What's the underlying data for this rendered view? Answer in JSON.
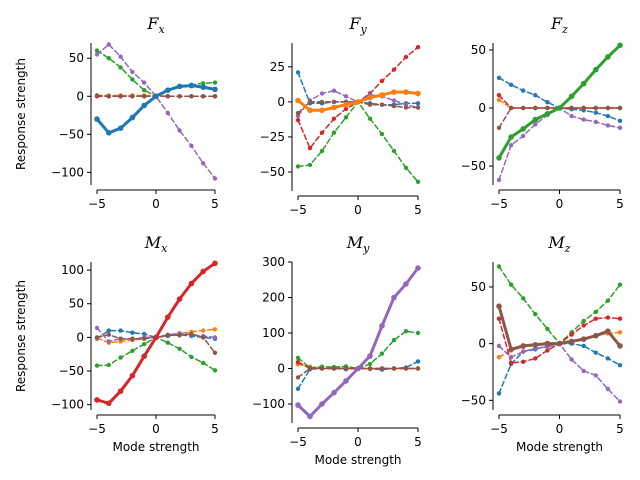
{
  "colors": {
    "blue": "#1f77b4",
    "orange": "#ff7f0e",
    "green": "#2ca02c",
    "red": "#d62728",
    "purple": "#9467bd",
    "brown": "#8c564b"
  },
  "chart_data": [
    {
      "type": "line",
      "title": "F",
      "subscript": "x",
      "xlabel": "",
      "ylabel": "Response strength",
      "xlim": [
        -5,
        5
      ],
      "ylim": [
        -110,
        70
      ],
      "xticks": [
        -5,
        0,
        5
      ],
      "yticks": [
        50,
        0,
        -50,
        -100
      ],
      "x": [
        -5,
        -4,
        -3,
        -2,
        -1,
        0,
        1,
        2,
        3,
        4,
        5
      ],
      "series": [
        {
          "name": "blue",
          "color": "blue",
          "dashed": false,
          "bold": true,
          "values": [
            -30,
            -48,
            -42,
            -28,
            -12,
            0,
            8,
            13,
            14,
            12,
            9
          ]
        },
        {
          "name": "orange",
          "color": "orange",
          "dashed": true,
          "bold": false,
          "values": [
            1,
            1,
            1,
            1,
            1,
            1,
            0,
            0,
            0,
            0,
            0
          ]
        },
        {
          "name": "green",
          "color": "green",
          "dashed": true,
          "bold": false,
          "values": [
            60,
            50,
            38,
            22,
            8,
            0,
            8,
            13,
            15,
            17,
            18
          ]
        },
        {
          "name": "red",
          "color": "red",
          "dashed": true,
          "bold": false,
          "values": [
            0,
            0,
            0,
            0,
            0,
            0,
            0,
            0,
            0,
            0,
            0
          ]
        },
        {
          "name": "purple",
          "color": "purple",
          "dashed": true,
          "bold": false,
          "values": [
            55,
            68,
            52,
            32,
            18,
            0,
            -22,
            -45,
            -65,
            -88,
            -108
          ]
        },
        {
          "name": "brown",
          "color": "brown",
          "dashed": true,
          "bold": false,
          "values": [
            1,
            0,
            0,
            0,
            0,
            0,
            0,
            0,
            0,
            0,
            0
          ]
        }
      ]
    },
    {
      "type": "line",
      "title": "F",
      "subscript": "y",
      "xlabel": "",
      "ylabel": "",
      "xlim": [
        -5,
        5
      ],
      "ylim": [
        -60,
        42
      ],
      "xticks": [
        -5,
        0,
        5
      ],
      "yticks": [
        25,
        0,
        -25,
        -50
      ],
      "x": [
        -5,
        -4,
        -3,
        -2,
        -1,
        0,
        1,
        2,
        3,
        4,
        5
      ],
      "series": [
        {
          "name": "blue",
          "color": "blue",
          "dashed": true,
          "bold": false,
          "values": [
            21,
            -1,
            -1,
            0,
            0,
            0,
            -1,
            -2,
            -2,
            -1,
            -1
          ]
        },
        {
          "name": "orange",
          "color": "orange",
          "dashed": false,
          "bold": true,
          "values": [
            1,
            -6,
            -6,
            -4,
            -2,
            0,
            3,
            5,
            7,
            7,
            6
          ]
        },
        {
          "name": "green",
          "color": "green",
          "dashed": true,
          "bold": false,
          "values": [
            -46,
            -45,
            -35,
            -22,
            -11,
            0,
            -12,
            -23,
            -35,
            -47,
            -57
          ]
        },
        {
          "name": "red",
          "color": "red",
          "dashed": true,
          "bold": false,
          "values": [
            -13,
            -33,
            -22,
            -12,
            -5,
            0,
            6,
            15,
            23,
            32,
            39
          ]
        },
        {
          "name": "purple",
          "color": "purple",
          "dashed": true,
          "bold": false,
          "values": [
            -10,
            1,
            6,
            8,
            4,
            0,
            5,
            4,
            1,
            -2,
            -4
          ]
        },
        {
          "name": "brown",
          "color": "brown",
          "dashed": true,
          "bold": false,
          "values": [
            -8,
            0,
            0,
            0,
            0,
            0,
            -2,
            -2,
            -3,
            -4,
            -4
          ]
        }
      ]
    },
    {
      "type": "line",
      "title": "F",
      "subscript": "z",
      "xlabel": "",
      "ylabel": "",
      "xlim": [
        -5,
        5
      ],
      "ylim": [
        -62,
        56
      ],
      "xticks": [
        -5,
        0,
        5
      ],
      "yticks": [
        50,
        0,
        -50
      ],
      "x": [
        -5,
        -4,
        -3,
        -2,
        -1,
        0,
        1,
        2,
        3,
        4,
        5
      ],
      "series": [
        {
          "name": "blue",
          "color": "blue",
          "dashed": true,
          "bold": false,
          "values": [
            26,
            20,
            15,
            11,
            5,
            0,
            -1,
            -2,
            -4,
            -7,
            -11
          ]
        },
        {
          "name": "orange",
          "color": "orange",
          "dashed": true,
          "bold": false,
          "values": [
            7,
            0,
            0,
            0,
            0,
            0,
            0,
            0,
            0,
            0,
            0
          ]
        },
        {
          "name": "green",
          "color": "green",
          "dashed": false,
          "bold": true,
          "values": [
            -43,
            -25,
            -18,
            -10,
            -5,
            0,
            10,
            21,
            33,
            44,
            54
          ]
        },
        {
          "name": "red",
          "color": "red",
          "dashed": true,
          "bold": false,
          "values": [
            11,
            0,
            0,
            0,
            0,
            0,
            0,
            0,
            0,
            0,
            0
          ]
        },
        {
          "name": "purple",
          "color": "purple",
          "dashed": true,
          "bold": false,
          "values": [
            -62,
            -32,
            -24,
            -14,
            -6,
            0,
            -7,
            -10,
            -12,
            -15,
            -17
          ]
        },
        {
          "name": "brown",
          "color": "brown",
          "dashed": true,
          "bold": false,
          "values": [
            -17,
            0,
            0,
            0,
            0,
            0,
            0,
            0,
            0,
            0,
            0
          ]
        }
      ]
    },
    {
      "type": "line",
      "title": "M",
      "subscript": "x",
      "xlabel": "Mode strength",
      "ylabel": "Response strength",
      "xlim": [
        -5,
        5
      ],
      "ylim": [
        -102,
        112
      ],
      "xticks": [
        -5,
        0,
        5
      ],
      "yticks": [
        100,
        50,
        0,
        -50,
        -100
      ],
      "x": [
        -5,
        -4,
        -3,
        -2,
        -1,
        0,
        1,
        2,
        3,
        4,
        5
      ],
      "series": [
        {
          "name": "blue",
          "color": "blue",
          "dashed": true,
          "bold": false,
          "values": [
            -2,
            10,
            10,
            7,
            5,
            0,
            2,
            4,
            2,
            0,
            -2
          ]
        },
        {
          "name": "orange",
          "color": "orange",
          "dashed": true,
          "bold": false,
          "values": [
            -1,
            -8,
            -6,
            -4,
            -2,
            0,
            3,
            6,
            8,
            10,
            12
          ]
        },
        {
          "name": "green",
          "color": "green",
          "dashed": true,
          "bold": false,
          "values": [
            -42,
            -41,
            -30,
            -20,
            -10,
            0,
            -8,
            -17,
            -29,
            -38,
            -49
          ]
        },
        {
          "name": "red",
          "color": "red",
          "dashed": false,
          "bold": true,
          "values": [
            -93,
            -98,
            -80,
            -57,
            -28,
            0,
            30,
            57,
            80,
            98,
            110
          ]
        },
        {
          "name": "purple",
          "color": "purple",
          "dashed": true,
          "bold": false,
          "values": [
            14,
            -6,
            -2,
            -3,
            0,
            0,
            4,
            6,
            4,
            2,
            0
          ]
        },
        {
          "name": "brown",
          "color": "brown",
          "dashed": true,
          "bold": false,
          "values": [
            0,
            4,
            -2,
            -2,
            -2,
            0,
            3,
            3,
            5,
            0,
            -23
          ]
        }
      ]
    },
    {
      "type": "line",
      "title": "M",
      "subscript": "y",
      "xlabel": "Mode strength",
      "ylabel": "",
      "xlim": [
        -5,
        5
      ],
      "ylim": [
        -145,
        300
      ],
      "xticks": [
        -5,
        0,
        5
      ],
      "yticks": [
        300,
        200,
        100,
        0,
        -100
      ],
      "x": [
        -5,
        -4,
        -3,
        -2,
        -1,
        0,
        1,
        2,
        3,
        4,
        5
      ],
      "series": [
        {
          "name": "blue",
          "color": "blue",
          "dashed": true,
          "bold": false,
          "values": [
            -57,
            -2,
            0,
            0,
            -2,
            0,
            -1,
            -3,
            0,
            3,
            20
          ]
        },
        {
          "name": "orange",
          "color": "orange",
          "dashed": true,
          "bold": false,
          "values": [
            12,
            5,
            0,
            0,
            2,
            0,
            0,
            0,
            0,
            0,
            0
          ]
        },
        {
          "name": "green",
          "color": "green",
          "dashed": true,
          "bold": false,
          "values": [
            30,
            2,
            5,
            4,
            6,
            0,
            13,
            42,
            80,
            105,
            100
          ]
        },
        {
          "name": "red",
          "color": "red",
          "dashed": true,
          "bold": false,
          "values": [
            18,
            0,
            0,
            0,
            0,
            0,
            0,
            0,
            0,
            0,
            0
          ]
        },
        {
          "name": "purple",
          "color": "purple",
          "dashed": false,
          "bold": true,
          "values": [
            -103,
            -135,
            -100,
            -68,
            -35,
            0,
            35,
            120,
            200,
            238,
            283
          ]
        },
        {
          "name": "brown",
          "color": "brown",
          "dashed": true,
          "bold": false,
          "values": [
            -25,
            0,
            0,
            0,
            0,
            0,
            0,
            0,
            0,
            0,
            0
          ]
        }
      ]
    },
    {
      "type": "line",
      "title": "M",
      "subscript": "z",
      "xlabel": "Mode strength",
      "ylabel": "",
      "xlim": [
        -5,
        5
      ],
      "ylim": [
        -55,
        72
      ],
      "xticks": [
        -5,
        0,
        5
      ],
      "yticks": [
        50,
        0,
        -50
      ],
      "x": [
        -5,
        -4,
        -3,
        -2,
        -1,
        0,
        1,
        2,
        3,
        4,
        5
      ],
      "series": [
        {
          "name": "blue",
          "color": "blue",
          "dashed": true,
          "bold": false,
          "values": [
            -44,
            -18,
            -7,
            -5,
            -2,
            0,
            0,
            -2,
            -8,
            -13,
            -19
          ]
        },
        {
          "name": "orange",
          "color": "orange",
          "dashed": true,
          "bold": false,
          "values": [
            -12,
            -6,
            -3,
            -1,
            0,
            0,
            2,
            4,
            7,
            9,
            10
          ]
        },
        {
          "name": "green",
          "color": "green",
          "dashed": true,
          "bold": false,
          "values": [
            68,
            52,
            40,
            26,
            13,
            0,
            10,
            20,
            28,
            38,
            52
          ]
        },
        {
          "name": "red",
          "color": "red",
          "dashed": true,
          "bold": false,
          "values": [
            22,
            -17,
            -16,
            -13,
            -6,
            0,
            8,
            16,
            22,
            23,
            22
          ]
        },
        {
          "name": "purple",
          "color": "purple",
          "dashed": true,
          "bold": false,
          "values": [
            -2,
            -12,
            -7,
            -4,
            -3,
            0,
            -14,
            -24,
            -28,
            -40,
            -51
          ]
        },
        {
          "name": "brown",
          "color": "brown",
          "dashed": false,
          "bold": true,
          "values": [
            33,
            -5,
            -2,
            -1,
            0,
            0,
            2,
            4,
            7,
            11,
            -2
          ]
        }
      ]
    }
  ]
}
